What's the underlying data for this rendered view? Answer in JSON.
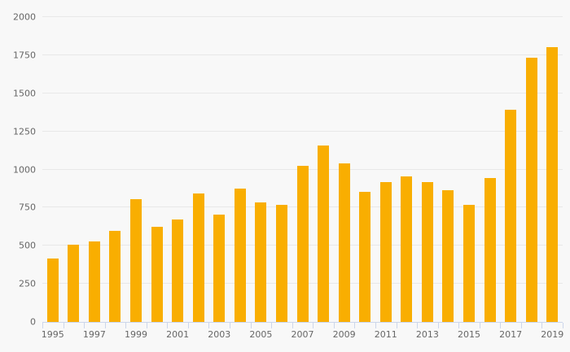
{
  "page": {
    "background": "#f8f8f8"
  },
  "chart_data": {
    "type": "bar",
    "title": "",
    "xlabel": "",
    "ylabel": "",
    "categories": [
      "1995",
      "1996",
      "1997",
      "1998",
      "1999",
      "2000",
      "2001",
      "2002",
      "2003",
      "2004",
      "2005",
      "2006",
      "2007",
      "2008",
      "2009",
      "2010",
      "2011",
      "2012",
      "2013",
      "2014",
      "2015",
      "2016",
      "2017",
      "2018",
      "2019"
    ],
    "values": [
      415,
      505,
      530,
      595,
      805,
      625,
      670,
      845,
      705,
      875,
      785,
      770,
      1025,
      1160,
      1040,
      855,
      920,
      955,
      920,
      865,
      770,
      945,
      1390,
      1735,
      1805
    ],
    "ylim": [
      0,
      2000
    ],
    "ytick_interval": 250,
    "ytick_labels": [
      "0",
      "250",
      "500",
      "750",
      "1000",
      "1250",
      "1500",
      "1750",
      "2000"
    ],
    "xtick_labels_shown": [
      "1995",
      "1997",
      "1999",
      "2001",
      "2003",
      "2005",
      "2007",
      "2009",
      "2011",
      "2013",
      "2015",
      "2017",
      "2019"
    ],
    "grid": true,
    "legend": false,
    "colors": {
      "bar": "#f9ae01",
      "grid": "#e8e8e8",
      "axis": "#ccd6eb",
      "text": "#666666",
      "background": "#f8f8f8"
    }
  }
}
